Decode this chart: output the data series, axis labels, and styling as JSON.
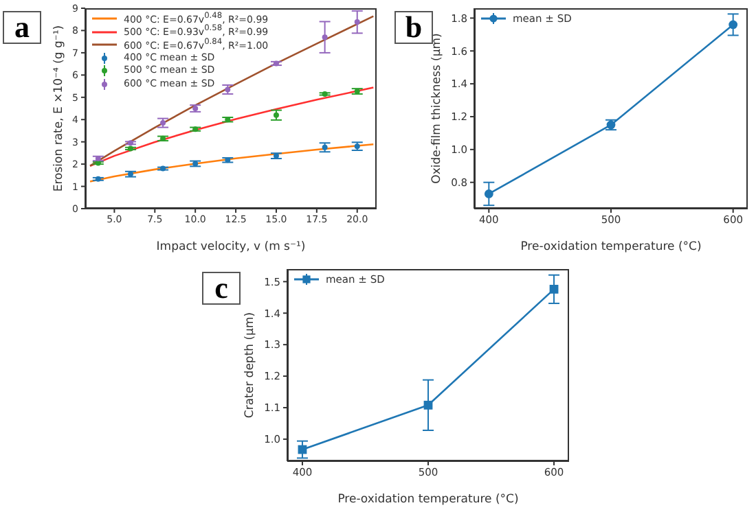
{
  "chart_data": [
    {
      "type": "line",
      "title": "a",
      "xlabel": "Impact velocity, v (m s⁻¹)",
      "ylabel": "Erosion rate, E ×10⁻⁴ (g g⁻¹)",
      "xlim": [
        3.2,
        21.2
      ],
      "ylim": [
        0,
        9
      ],
      "xticks": [
        {
          "value": 5,
          "label": "5.0"
        },
        7.5,
        {
          "value": 10,
          "label": "10.0"
        },
        12.5,
        {
          "value": 15,
          "label": "15.0"
        },
        17.5,
        {
          "value": 20,
          "label": "20.0"
        }
      ],
      "yticks": [
        0,
        1,
        2,
        3,
        4,
        5,
        6,
        7,
        8,
        9
      ],
      "legend": "top left",
      "series": [
        {
          "name": "400 °C: E=0.67v$^{0.48}$, R²=0.99",
          "marker": "none",
          "color": "#ff7f0e",
          "x": [
            3.5,
            5,
            7.5,
            10,
            12.5,
            15,
            17.5,
            21
          ],
          "values": [
            1.22,
            1.45,
            1.76,
            2.02,
            2.26,
            2.46,
            2.65,
            2.89
          ]
        },
        {
          "name": "500 °C: E=0.93v$^{0.58}$, R²=0.99",
          "marker": "none",
          "color": "#ff3030",
          "x": [
            3.5,
            5,
            7.5,
            10,
            12.5,
            15,
            17.5,
            21
          ],
          "values": [
            1.92,
            2.37,
            2.99,
            3.53,
            4.02,
            4.47,
            4.89,
            5.44
          ]
        },
        {
          "name": "600 °C: E=0.67v$^{0.84}$, R²=1.00",
          "marker": "none",
          "color": "#a0522d",
          "x": [
            3.5,
            5,
            7.5,
            10,
            12.5,
            15,
            17.5,
            21
          ],
          "values": [
            1.92,
            2.59,
            3.64,
            4.64,
            5.59,
            6.52,
            7.41,
            8.64
          ]
        },
        {
          "name": "400 °C mean ± SD",
          "type": "scatter",
          "marker": "circle",
          "color": "#1f77b4",
          "x": [
            4,
            6,
            8,
            10,
            12,
            15,
            18,
            20
          ],
          "values": [
            1.33,
            1.55,
            1.8,
            2.02,
            2.18,
            2.37,
            2.75,
            2.8
          ],
          "errors": [
            0.06,
            0.12,
            0.06,
            0.12,
            0.1,
            0.12,
            0.2,
            0.18
          ]
        },
        {
          "name": "500 °C mean ± SD",
          "type": "scatter",
          "marker": "circle",
          "color": "#2ca02c",
          "x": [
            4,
            6,
            8,
            10,
            12,
            15,
            18,
            20
          ],
          "values": [
            2.05,
            2.7,
            3.15,
            3.57,
            4.0,
            4.2,
            5.15,
            5.27
          ],
          "errors": [
            0.05,
            0.05,
            0.1,
            0.08,
            0.1,
            0.22,
            0.05,
            0.12
          ]
        },
        {
          "name": "600 °C mean ± SD",
          "type": "scatter",
          "marker": "circle",
          "color": "#9467bd",
          "x": [
            4,
            6,
            8,
            10,
            12,
            15,
            18,
            20
          ],
          "values": [
            2.25,
            2.95,
            3.85,
            4.5,
            5.35,
            6.52,
            7.7,
            8.38
          ],
          "errors": [
            0.1,
            0.06,
            0.2,
            0.15,
            0.2,
            0.08,
            0.7,
            0.5
          ]
        }
      ]
    },
    {
      "type": "line",
      "title": "b",
      "xlabel": "Pre-oxidation temperature (°C)",
      "ylabel": "Oxide-film thickness (μm)",
      "x": [
        400,
        500,
        600
      ],
      "xlim": [
        388,
        612
      ],
      "ylim": [
        0.64,
        1.86
      ],
      "xticks": [
        400,
        500,
        600
      ],
      "yticks": [
        0.8,
        {
          "value": 1,
          "label": "1.0"
        },
        1.2,
        1.4,
        1.6,
        1.8
      ],
      "legend": "top left",
      "marker": "circle",
      "series": [
        {
          "name": "mean ± SD",
          "color": "#1f77b4",
          "values": [
            0.73,
            1.15,
            1.76
          ],
          "errors": [
            0.07,
            0.03,
            0.065
          ]
        }
      ]
    },
    {
      "type": "line",
      "title": "c",
      "xlabel": "Pre-oxidation temperature (°C)",
      "ylabel": "Crater depth (μm)",
      "x": [
        400,
        500,
        600
      ],
      "xlim": [
        388,
        612
      ],
      "ylim": [
        0.93,
        1.54
      ],
      "xticks": [
        400,
        500,
        600
      ],
      "yticks": [
        {
          "value": 1,
          "label": "1.0"
        },
        1.1,
        1.2,
        1.3,
        1.4,
        1.5
      ],
      "legend": "top left",
      "marker": "square",
      "series": [
        {
          "name": "mean ± SD",
          "color": "#1f77b4",
          "values": [
            0.967,
            1.108,
            1.476
          ],
          "errors": [
            0.027,
            0.08,
            0.045
          ]
        }
      ]
    }
  ]
}
